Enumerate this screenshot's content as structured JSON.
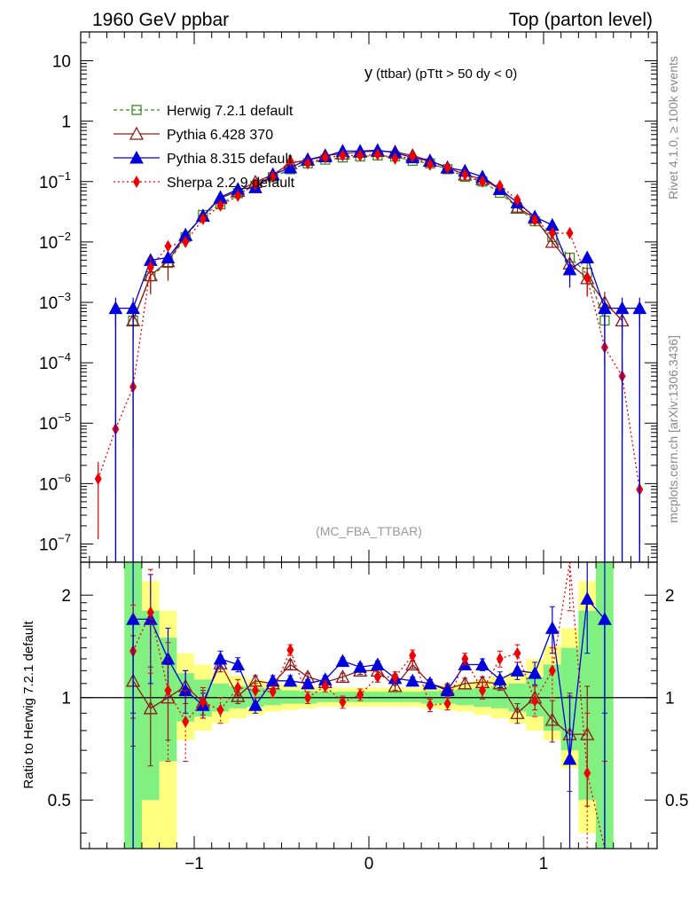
{
  "header": {
    "left": "1960 GeV ppbar",
    "right": "Top (parton level)"
  },
  "side_labels": {
    "rivet": "Rivet 4.1.0, ≥ 100k events",
    "mcplots": "mcplots.cern.ch [arXiv:1306.3436]"
  },
  "colors": {
    "herwig": "#3a8a1e",
    "pythia6": "#8b1a1a",
    "pythia8": "#0000dd",
    "sherpa": "#ee0000",
    "band_yellow": "#ffff80",
    "band_green": "#80f080"
  },
  "chart_data": [
    {
      "type": "line",
      "panel": "main",
      "title": "y (ttbar) (pTtt > 50 dy < 0)",
      "title_main": "y",
      "title_sub": "(ttbar) (pTtt > 50 dy < 0)",
      "watermark": "(MC_FBA_TTBAR)",
      "xlim": [
        -1.65,
        1.65
      ],
      "ylim": [
        5e-08,
        30
      ],
      "yscale": "log",
      "y_tick_labels": [
        {
          "value": 1e-07,
          "mant": "10",
          "exp": "−7"
        },
        {
          "value": 1e-06,
          "mant": "10",
          "exp": "−6"
        },
        {
          "value": 1e-05,
          "mant": "10",
          "exp": "−5"
        },
        {
          "value": 0.0001,
          "mant": "10",
          "exp": "−4"
        },
        {
          "value": 0.001,
          "mant": "10",
          "exp": "−3"
        },
        {
          "value": 0.01,
          "mant": "10",
          "exp": "−2"
        },
        {
          "value": 0.1,
          "mant": "10",
          "exp": "−1"
        },
        {
          "value": 1,
          "mant": "1",
          "exp": ""
        },
        {
          "value": 10,
          "mant": "10",
          "exp": ""
        }
      ],
      "x": [
        -1.55,
        -1.45,
        -1.35,
        -1.25,
        -1.15,
        -1.05,
        -0.95,
        -0.85,
        -0.75,
        -0.65,
        -0.55,
        -0.45,
        -0.35,
        -0.25,
        -0.15,
        -0.05,
        0.05,
        0.15,
        0.25,
        0.35,
        0.45,
        0.55,
        0.65,
        0.75,
        0.85,
        0.95,
        1.05,
        1.15,
        1.25,
        1.35,
        1.45,
        1.55
      ],
      "series": [
        {
          "name": "Herwig 7.2.1 default",
          "key": "herwig",
          "marker": "open-square",
          "dash": "4,3",
          "values": [
            null,
            null,
            0.0005,
            0.0027,
            0.0045,
            0.012,
            0.028,
            0.042,
            0.064,
            0.085,
            0.118,
            0.16,
            0.2,
            0.23,
            0.25,
            0.26,
            0.27,
            0.26,
            0.22,
            0.2,
            0.16,
            0.12,
            0.1,
            0.065,
            0.037,
            0.022,
            0.012,
            0.0055,
            0.0031,
            0.0005,
            null,
            null
          ]
        },
        {
          "name": "Pythia 6.428 370",
          "key": "pythia6",
          "marker": "open-triangle",
          "dash": "",
          "values": [
            null,
            null,
            0.0005,
            0.0028,
            0.0048,
            0.013,
            0.027,
            0.053,
            0.07,
            0.098,
            0.13,
            0.2,
            0.23,
            0.27,
            0.29,
            0.31,
            0.32,
            0.31,
            0.27,
            0.22,
            0.17,
            0.13,
            0.11,
            0.075,
            0.037,
            0.025,
            0.01,
            0.0044,
            0.0025,
            0.001,
            0.0005,
            null
          ]
        },
        {
          "name": "Pythia 8.315 default",
          "key": "pythia8",
          "marker": "filled-triangle",
          "dash": "",
          "values": [
            null,
            0.0008,
            0.0008,
            0.005,
            0.0055,
            0.013,
            0.027,
            0.055,
            0.075,
            0.08,
            0.13,
            0.17,
            0.23,
            0.26,
            0.32,
            0.32,
            0.33,
            0.3,
            0.25,
            0.22,
            0.17,
            0.15,
            0.12,
            0.075,
            0.045,
            0.026,
            0.019,
            0.0035,
            0.0055,
            0.0008,
            0.0008,
            0.0008
          ]
        },
        {
          "name": "Sherpa 2.2.9 default",
          "key": "sherpa",
          "marker": "filled-diamond",
          "dash": "2,3",
          "values": [
            1.2e-06,
            8e-06,
            4e-05,
            0.0038,
            0.0085,
            0.01,
            0.024,
            0.04,
            0.058,
            0.09,
            0.12,
            0.22,
            0.2,
            0.25,
            0.27,
            0.27,
            0.28,
            0.24,
            0.26,
            0.19,
            0.17,
            0.13,
            0.1,
            0.085,
            0.05,
            0.023,
            0.014,
            0.014,
            0.0025,
            0.00018,
            6e-05,
            8e-07
          ]
        }
      ],
      "legend_position": "top-left"
    },
    {
      "type": "line",
      "panel": "ratio",
      "ylabel": "Ratio to Herwig 7.2.1 default",
      "ylim": [
        0.36,
        2.5
      ],
      "yscale": "log",
      "y_ticks": [
        0.5,
        1,
        2
      ],
      "y_tick_labels": [
        "0.5",
        "1",
        "2"
      ],
      "xlim": [
        -1.65,
        1.65
      ],
      "x_ticks": [
        -1,
        0,
        1
      ],
      "x_tick_labels": [
        "−1",
        "0",
        "1"
      ],
      "reference_line": 1,
      "band_yellow": {
        "x": [
          -1.35,
          -1.25,
          -1.15,
          -1.05,
          -0.95,
          -0.85,
          -0.75,
          -0.65,
          -0.55,
          -0.45,
          -0.35,
          -0.25,
          -0.15,
          -0.05,
          0.05,
          0.15,
          0.25,
          0.35,
          0.45,
          0.55,
          0.65,
          0.75,
          0.85,
          0.95,
          1.05,
          1.15,
          1.25,
          1.35
        ],
        "low": [
          0.3,
          0.3,
          0.3,
          0.75,
          0.8,
          0.84,
          0.87,
          0.89,
          0.91,
          0.92,
          0.93,
          0.94,
          0.94,
          0.94,
          0.94,
          0.94,
          0.94,
          0.93,
          0.92,
          0.91,
          0.89,
          0.87,
          0.84,
          0.8,
          0.75,
          0.62,
          0.4,
          0.3
        ],
        "high": [
          3,
          2.2,
          1.8,
          1.35,
          1.25,
          1.2,
          1.16,
          1.13,
          1.11,
          1.09,
          1.08,
          1.07,
          1.07,
          1.07,
          1.07,
          1.07,
          1.07,
          1.08,
          1.09,
          1.11,
          1.13,
          1.16,
          1.2,
          1.3,
          1.42,
          1.6,
          2.2,
          3
        ]
      },
      "band_green": {
        "x": [
          -1.35,
          -1.25,
          -1.15,
          -1.05,
          -0.95,
          -0.85,
          -0.75,
          -0.65,
          -0.55,
          -0.45,
          -0.35,
          -0.25,
          -0.15,
          -0.05,
          0.05,
          0.15,
          0.25,
          0.35,
          0.45,
          0.55,
          0.65,
          0.75,
          0.85,
          0.95,
          1.05,
          1.15,
          1.25,
          1.35
        ],
        "low": [
          0.3,
          0.5,
          0.65,
          0.85,
          0.88,
          0.91,
          0.93,
          0.94,
          0.95,
          0.96,
          0.96,
          0.97,
          0.97,
          0.97,
          0.97,
          0.97,
          0.97,
          0.96,
          0.96,
          0.95,
          0.94,
          0.93,
          0.91,
          0.88,
          0.8,
          0.7,
          0.5,
          0.3
        ],
        "high": [
          3,
          1.8,
          1.5,
          1.18,
          1.13,
          1.1,
          1.08,
          1.07,
          1.06,
          1.05,
          1.045,
          1.04,
          1.04,
          1.04,
          1.04,
          1.04,
          1.04,
          1.045,
          1.05,
          1.06,
          1.07,
          1.08,
          1.1,
          1.15,
          1.25,
          1.4,
          1.8,
          3
        ]
      },
      "x": [
        -1.35,
        -1.25,
        -1.15,
        -1.05,
        -0.95,
        -0.85,
        -0.75,
        -0.65,
        -0.55,
        -0.45,
        -0.35,
        -0.25,
        -0.15,
        -0.05,
        0.05,
        0.15,
        0.25,
        0.35,
        0.45,
        0.55,
        0.65,
        0.75,
        0.85,
        0.95,
        1.05,
        1.15,
        1.25,
        1.35
      ],
      "series": [
        {
          "name": "Pythia 6.428 370",
          "key": "pythia6",
          "marker": "open-triangle",
          "dash": "",
          "values": [
            1.12,
            0.93,
            1.0,
            1.08,
            0.97,
            1.26,
            1.01,
            1.12,
            1.1,
            1.25,
            1.15,
            1.11,
            1.15,
            1.2,
            1.2,
            1.08,
            1.25,
            1.1,
            1.06,
            1.1,
            1.11,
            1.1,
            0.9,
            1.0,
            0.86,
            0.78,
            0.78,
            null
          ],
          "errors": [
            0.4,
            0.3,
            0.25,
            0.12,
            0.08,
            0.07,
            0.05,
            0.04,
            0.04,
            0.04,
            0.03,
            0.03,
            0.03,
            0.03,
            0.03,
            0.03,
            0.03,
            0.03,
            0.04,
            0.04,
            0.04,
            0.05,
            0.06,
            0.08,
            0.12,
            0.25,
            0.3,
            null
          ]
        },
        {
          "name": "Pythia 8.315 default",
          "key": "pythia8",
          "marker": "filled-triangle",
          "dash": "",
          "values": [
            1.7,
            1.7,
            1.3,
            1.05,
            0.95,
            1.3,
            1.25,
            0.95,
            1.12,
            1.12,
            1.1,
            1.13,
            1.28,
            1.23,
            1.25,
            1.14,
            1.12,
            1.1,
            1.05,
            1.25,
            1.25,
            1.13,
            1.2,
            1.18,
            1.6,
            0.66,
            1.95,
            1.7
          ],
          "errors": [
            0.8,
            0.6,
            0.3,
            0.15,
            0.08,
            0.07,
            0.06,
            0.05,
            0.04,
            0.04,
            0.03,
            0.03,
            0.03,
            0.03,
            0.03,
            0.03,
            0.03,
            0.03,
            0.04,
            0.04,
            0.05,
            0.06,
            0.07,
            0.09,
            0.25,
            0.35,
            0.6,
            0.8
          ]
        },
        {
          "name": "Sherpa 2.2.9 default",
          "key": "sherpa",
          "marker": "filled-diamond",
          "dash": "2,3",
          "values": [
            1.37,
            1.78,
            1.05,
            0.85,
            0.97,
            0.92,
            1.07,
            1.05,
            1.04,
            1.38,
            1.0,
            1.08,
            0.97,
            1.02,
            1.15,
            1.15,
            1.33,
            0.95,
            0.96,
            1.3,
            1.05,
            1.3,
            1.35,
            0.98,
            1.2,
            2.6,
            0.6,
            0.35
          ],
          "errors": [
            0.5,
            0.6,
            0.4,
            0.2,
            0.1,
            0.08,
            0.06,
            0.05,
            0.04,
            0.05,
            0.04,
            0.04,
            0.04,
            0.04,
            0.04,
            0.04,
            0.05,
            0.04,
            0.04,
            0.05,
            0.06,
            0.07,
            0.08,
            0.1,
            0.2,
            0.8,
            0.3,
            0.3
          ]
        }
      ]
    }
  ]
}
